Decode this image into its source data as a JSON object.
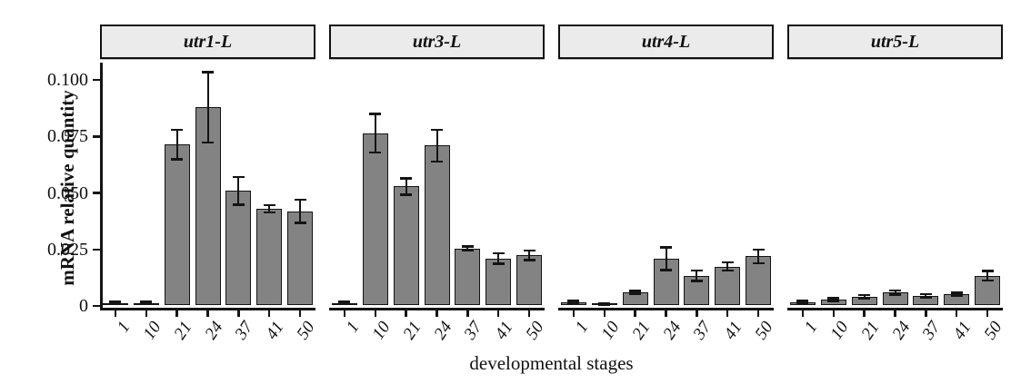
{
  "figure": {
    "background": "#ffffff",
    "facet_header_bg": "#ebebeb",
    "bar_fill": "#838383",
    "line_color": "#141414"
  },
  "chart_data": {
    "type": "bar",
    "title": "",
    "xlabel": "developmental stages",
    "ylabel": "mRNA relative quantity",
    "categories": [
      "1",
      "10",
      "21",
      "24",
      "37",
      "41",
      "50"
    ],
    "ylim": [
      0,
      0.105
    ],
    "yticks": [
      0,
      0.025,
      0.05,
      0.075,
      0.1
    ],
    "ytick_labels": [
      "0",
      "0.025",
      "0.050",
      "0.075",
      "0.100"
    ],
    "grid": false,
    "legend": false,
    "error_bars": true,
    "facets": [
      {
        "label": "utr1-L",
        "values": [
          0.001,
          0.001,
          0.071,
          0.0875,
          0.0505,
          0.0425,
          0.0415
        ],
        "errors": [
          0.0004,
          0.0004,
          0.0065,
          0.0155,
          0.006,
          0.0015,
          0.005
        ]
      },
      {
        "label": "utr3-L",
        "values": [
          0.001,
          0.076,
          0.0525,
          0.0705,
          0.025,
          0.0205,
          0.022
        ],
        "errors": [
          0.0003,
          0.0085,
          0.0035,
          0.007,
          0.0008,
          0.0022,
          0.002
        ]
      },
      {
        "label": "utr4-L",
        "values": [
          0.0013,
          0.0003,
          0.0055,
          0.0205,
          0.013,
          0.017,
          0.0215
        ],
        "errors": [
          0.0005,
          0.0002,
          0.0006,
          0.005,
          0.0022,
          0.0017,
          0.003
        ]
      },
      {
        "label": "utr5-L",
        "values": [
          0.0013,
          0.0025,
          0.0038,
          0.0055,
          0.0042,
          0.0048,
          0.013
        ],
        "errors": [
          0.0004,
          0.0005,
          0.0006,
          0.0008,
          0.0006,
          0.0005,
          0.002
        ]
      }
    ]
  }
}
